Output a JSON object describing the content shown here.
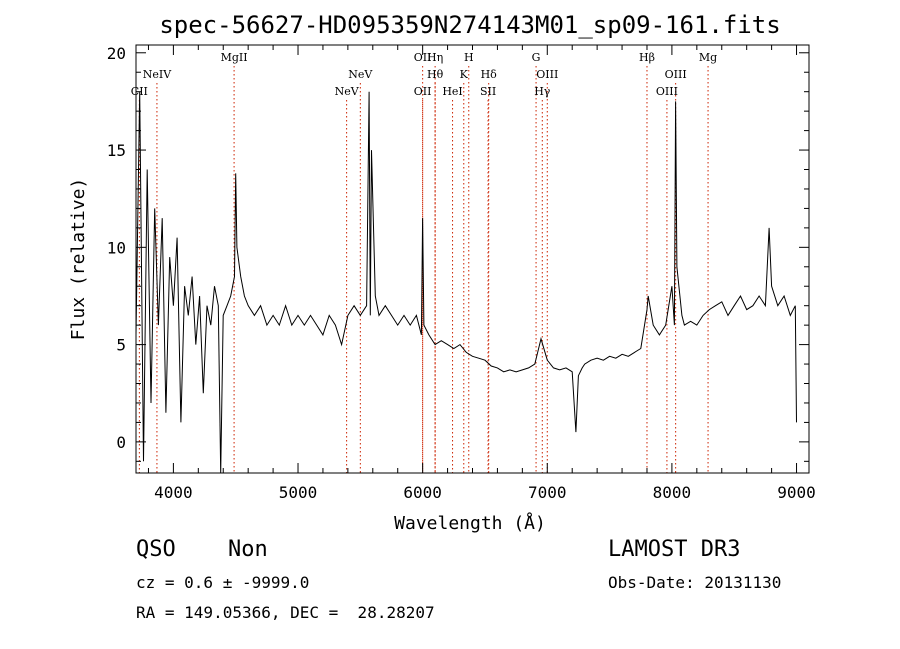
{
  "chart_data": {
    "type": "line",
    "title": "spec-56627-HD095359N274143M01_sp09-161.fits",
    "xlabel": "Wavelength (Å)",
    "ylabel": "Flux (relative)",
    "xlim": [
      3700,
      9100
    ],
    "ylim": [
      -1.6,
      20.4
    ],
    "x_ticks": [
      4000,
      5000,
      6000,
      7000,
      8000,
      9000
    ],
    "x_tick_labels": [
      "4000",
      "5000",
      "6000",
      "7000",
      "8000",
      "9000"
    ],
    "y_ticks": [
      0,
      5,
      10,
      15,
      20
    ],
    "y_tick_labels": [
      "0",
      "5",
      "10",
      "15",
      "20"
    ],
    "line_color": "#000000",
    "marker_color": "#cc2200",
    "series": [
      {
        "x": [
          3700,
          3730,
          3760,
          3790,
          3820,
          3850,
          3880,
          3910,
          3940,
          3970,
          4000,
          4030,
          4060,
          4090,
          4120,
          4150,
          4180,
          4210,
          4240,
          4270,
          4300,
          4330,
          4360,
          4380,
          4400,
          4430,
          4460,
          4490,
          4500,
          4510,
          4540,
          4570,
          4600,
          4650,
          4700,
          4750,
          4800,
          4850,
          4900,
          4950,
          5000,
          5050,
          5100,
          5150,
          5200,
          5250,
          5300,
          5350,
          5400,
          5450,
          5500,
          5550,
          5570,
          5580,
          5590,
          5620,
          5650,
          5700,
          5750,
          5800,
          5850,
          5900,
          5950,
          5990,
          6000,
          6010,
          6050,
          6100,
          6150,
          6200,
          6250,
          6300,
          6350,
          6400,
          6450,
          6500,
          6550,
          6600,
          6650,
          6700,
          6750,
          6800,
          6850,
          6900,
          6950,
          7000,
          7050,
          7100,
          7150,
          7200,
          7230,
          7250,
          7280,
          7300,
          7350,
          7400,
          7450,
          7500,
          7550,
          7600,
          7650,
          7700,
          7750,
          7800,
          7810,
          7850,
          7900,
          7950,
          8000,
          8020,
          8030,
          8040,
          8080,
          8100,
          8150,
          8200,
          8250,
          8300,
          8350,
          8400,
          8450,
          8500,
          8550,
          8600,
          8650,
          8700,
          8750,
          8780,
          8800,
          8850,
          8900,
          8950,
          8990,
          9000
        ],
        "y": [
          5.5,
          18.0,
          -1.0,
          14.0,
          2.0,
          12.0,
          6.0,
          11.5,
          1.5,
          9.5,
          7.0,
          10.5,
          1.0,
          8.0,
          6.5,
          8.5,
          5.0,
          7.5,
          2.5,
          7.0,
          6.0,
          8.0,
          7.0,
          -1.6,
          6.5,
          7.0,
          7.5,
          8.5,
          13.8,
          10.0,
          8.5,
          7.5,
          7.0,
          6.5,
          7.0,
          6.0,
          6.5,
          6.0,
          7.0,
          6.0,
          6.5,
          6.0,
          6.5,
          6.0,
          5.5,
          6.5,
          6.0,
          5.0,
          6.5,
          7.0,
          6.5,
          7.0,
          18.0,
          6.5,
          15.0,
          7.5,
          6.5,
          7.0,
          6.5,
          6.0,
          6.5,
          6.0,
          6.5,
          5.5,
          11.5,
          6.0,
          5.5,
          5.0,
          5.2,
          5.0,
          4.8,
          5.0,
          4.6,
          4.4,
          4.3,
          4.2,
          3.9,
          3.8,
          3.6,
          3.7,
          3.6,
          3.7,
          3.8,
          4.0,
          5.3,
          4.2,
          3.8,
          3.7,
          3.8,
          3.6,
          0.5,
          3.4,
          3.8,
          4.0,
          4.2,
          4.3,
          4.2,
          4.4,
          4.3,
          4.5,
          4.4,
          4.6,
          4.8,
          6.8,
          7.5,
          6.0,
          5.5,
          6.0,
          8.0,
          6.0,
          17.5,
          9.0,
          6.5,
          6.0,
          6.2,
          6.0,
          6.5,
          6.8,
          7.0,
          7.2,
          6.5,
          7.0,
          7.5,
          6.8,
          7.0,
          7.5,
          7.0,
          11.0,
          8.0,
          7.0,
          7.5,
          6.5,
          7.0,
          1.0
        ]
      }
    ],
    "line_markers": [
      {
        "label": "CII",
        "x": 3727,
        "row": 3
      },
      {
        "label": "NeIV",
        "x": 3868,
        "row": 1
      },
      {
        "label": "MgII",
        "x": 4487,
        "row": 0
      },
      {
        "label": "NeV",
        "x": 5390,
        "row": 3
      },
      {
        "label": "NeV",
        "x": 5500,
        "row": 1
      },
      {
        "label": "OII",
        "x": 6000,
        "row": 0
      },
      {
        "label": "OII",
        "x": 6000,
        "row": 3
      },
      {
        "label": "Hη",
        "x": 6100,
        "row": 0
      },
      {
        "label": "Hθ",
        "x": 6100,
        "row": 1
      },
      {
        "label": "HeI",
        "x": 6240,
        "row": 3
      },
      {
        "label": "K",
        "x": 6330,
        "row": 1
      },
      {
        "label": "H",
        "x": 6370,
        "row": 0
      },
      {
        "label": "Hδ",
        "x": 6530,
        "row": 1
      },
      {
        "label": "SII",
        "x": 6525,
        "row": 3
      },
      {
        "label": "G",
        "x": 6910,
        "row": 0
      },
      {
        "label": "OIII",
        "x": 7000,
        "row": 1
      },
      {
        "label": "Hγ",
        "x": 6960,
        "row": 3
      },
      {
        "label": "Hβ",
        "x": 7800,
        "row": 0
      },
      {
        "label": "OIII",
        "x": 8030,
        "row": 1
      },
      {
        "label": "OIII",
        "x": 7960,
        "row": 3
      },
      {
        "label": "Mg",
        "x": 8290,
        "row": 0
      }
    ]
  },
  "info": {
    "class": "QSO",
    "subclass": "Non",
    "survey": "LAMOST DR3",
    "cz_line": "cz = 0.6 ± -9999.0",
    "obs_date": "Obs-Date: 20131130",
    "coords": "RA = 149.05366, DEC =  28.28207"
  }
}
